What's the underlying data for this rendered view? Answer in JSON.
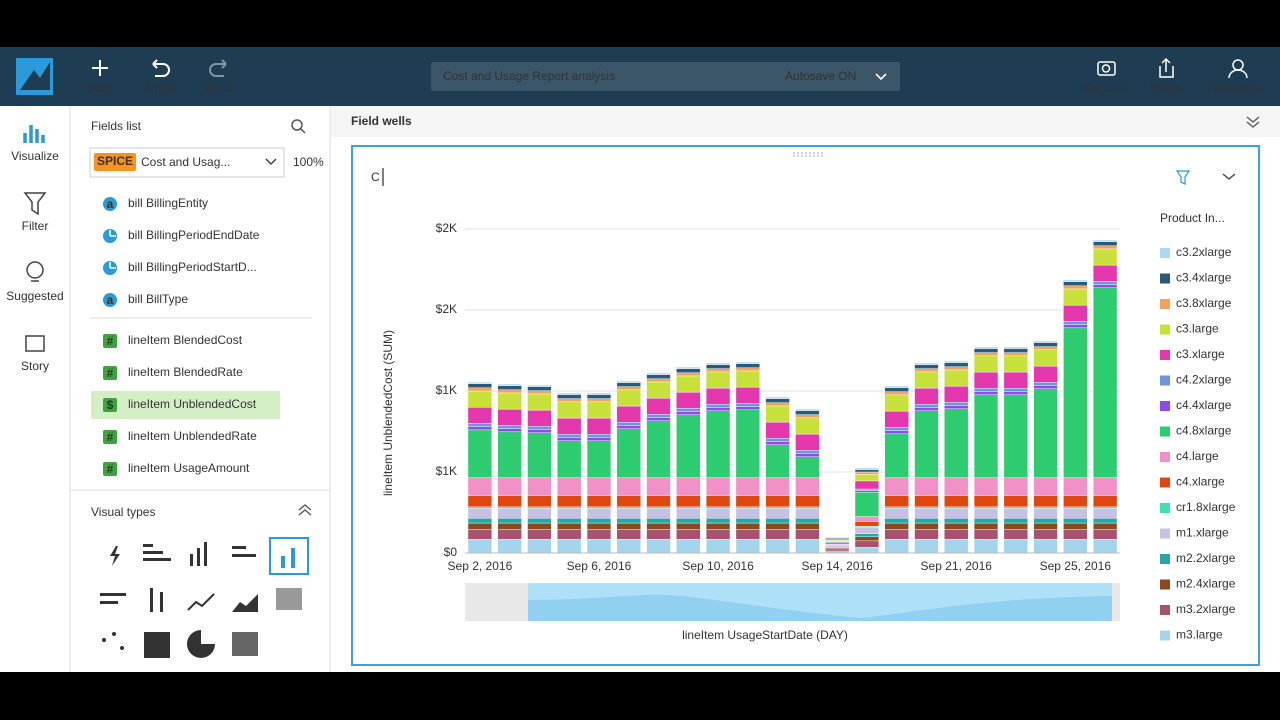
{
  "header": {
    "buttons": [
      "Add",
      "Undo",
      "Redo"
    ],
    "analysis_title": "Cost and Usage Report analysis",
    "autosave": "Autosave ON",
    "right_buttons": [
      "Capture",
      "Share",
      "jhnjos@a..."
    ]
  },
  "rail": [
    "Visualize",
    "Filter",
    "Suggested",
    "Story"
  ],
  "fields": {
    "title": "Fields list",
    "spice": "SPICE",
    "dataset": "Cost and Usag...",
    "percent": "100%",
    "items": [
      {
        "icon": "a",
        "label": "bill BillingEntity"
      },
      {
        "label": "bill BillingPeriodEndDate"
      },
      {
        "label": "bill BillingPeriodStartD..."
      },
      {
        "icon": "a",
        "label": "bill BillType"
      },
      {
        "icon": "#",
        "label": "lineItem BlendedCost"
      },
      {
        "icon": "#",
        "label": "lineItem BlendedRate"
      },
      {
        "icon": "$",
        "label": "lineItem UnblendedCost"
      },
      {
        "icon": "#",
        "label": "lineItem UnblendedRate"
      },
      {
        "icon": "#",
        "label": "lineItem UsageAmount"
      }
    ]
  },
  "visual_types_title": "Visual types",
  "field_wells": "Field wells",
  "visual": {
    "title_input": "C",
    "chart_data": {
      "type": "bar",
      "stacked": true,
      "x_label": "lineItem UsageStartDate (DAY)",
      "y_label": "lineItem UnblendedCost (SUM)",
      "legend_title": "Product In...",
      "categories": [
        "Sep 2, 2016",
        null,
        null,
        null,
        "Sep 6, 2016",
        null,
        null,
        null,
        "Sep 10, 2016",
        null,
        null,
        null,
        "Sep 14, 2016",
        null,
        null,
        null,
        "Sep 21, 2016",
        null,
        null,
        null,
        "Sep 25, 2016",
        null
      ],
      "ylim": [
        0,
        2000
      ],
      "yticks": [
        {
          "value": 0,
          "label": "$0"
        },
        {
          "value": 500,
          "label": "$1K"
        },
        {
          "value": 1000,
          "label": "$1K"
        },
        {
          "value": 1500,
          "label": "$2K"
        },
        {
          "value": 2000,
          "label": "$2K"
        }
      ],
      "grid": true,
      "series": [
        {
          "name": "c3.2xlarge",
          "color": "#a9d9f2",
          "values": [
            10,
            10,
            10,
            10,
            10,
            10,
            10,
            10,
            10,
            10,
            10,
            10,
            5,
            10,
            10,
            10,
            10,
            10,
            10,
            10,
            10,
            10
          ]
        },
        {
          "name": "c3.4xlarge",
          "color": "#2a5a78",
          "values": [
            25,
            25,
            25,
            25,
            25,
            25,
            25,
            25,
            25,
            25,
            25,
            25,
            5,
            15,
            25,
            25,
            25,
            25,
            25,
            25,
            25,
            25
          ]
        },
        {
          "name": "c3.8xlarge",
          "color": "#f2a45c",
          "values": [
            20,
            20,
            20,
            20,
            20,
            20,
            20,
            20,
            20,
            20,
            20,
            20,
            10,
            15,
            20,
            20,
            20,
            20,
            20,
            20,
            20,
            20
          ]
        },
        {
          "name": "c3.large",
          "color": "#c7e03a",
          "values": [
            100,
            100,
            100,
            100,
            100,
            100,
            100,
            100,
            100,
            100,
            100,
            100,
            5,
            40,
            100,
            100,
            100,
            100,
            100,
            100,
            100,
            100
          ]
        },
        {
          "name": "c3.xlarge",
          "color": "#e437ad",
          "values": [
            100,
            100,
            100,
            100,
            100,
            100,
            100,
            100,
            100,
            100,
            100,
            100,
            5,
            50,
            100,
            100,
            100,
            100,
            100,
            100,
            100,
            100
          ]
        },
        {
          "name": "c4.2xlarge",
          "color": "#6e93df",
          "values": [
            20,
            20,
            20,
            20,
            20,
            20,
            20,
            20,
            20,
            20,
            20,
            20,
            5,
            10,
            20,
            20,
            20,
            20,
            20,
            20,
            20,
            20
          ]
        },
        {
          "name": "c4.4xlarge",
          "color": "#8b4de8",
          "values": [
            20,
            20,
            20,
            20,
            20,
            20,
            20,
            20,
            20,
            20,
            20,
            20,
            0,
            10,
            20,
            20,
            20,
            20,
            20,
            20,
            20,
            20
          ]
        },
        {
          "name": "c4.8xlarge",
          "color": "#2ecc71",
          "values": [
            295,
            283,
            277,
            228,
            228,
            302,
            351,
            388,
            413,
            419,
            203,
            129,
            10,
            150,
            271,
            413,
            425,
            512,
            512,
            549,
            925,
            1172
          ]
        },
        {
          "name": "c4.large",
          "color": "#f291c8",
          "values": [
            110,
            110,
            110,
            110,
            110,
            110,
            110,
            110,
            110,
            110,
            110,
            110,
            5,
            30,
            110,
            110,
            110,
            110,
            110,
            110,
            110,
            110
          ]
        },
        {
          "name": "c4.xlarge",
          "color": "#e0470f",
          "values": [
            70,
            70,
            70,
            70,
            70,
            70,
            70,
            70,
            70,
            70,
            70,
            70,
            5,
            30,
            70,
            70,
            70,
            70,
            70,
            70,
            70,
            70
          ]
        },
        {
          "name": "cr1.8xlarge",
          "color": "#3fe0b2",
          "values": [
            10,
            10,
            10,
            10,
            10,
            10,
            10,
            10,
            10,
            10,
            10,
            10,
            0,
            5,
            10,
            10,
            10,
            10,
            10,
            10,
            10,
            10
          ]
        },
        {
          "name": "m1.xlarge",
          "color": "#c6c1e2",
          "values": [
            60,
            60,
            60,
            60,
            60,
            60,
            60,
            60,
            60,
            60,
            60,
            60,
            10,
            40,
            60,
            60,
            60,
            60,
            60,
            60,
            60,
            60
          ]
        },
        {
          "name": "m2.2xlarge",
          "color": "#27a6a8",
          "values": [
            30,
            30,
            30,
            30,
            30,
            30,
            30,
            30,
            30,
            30,
            30,
            30,
            5,
            20,
            30,
            30,
            30,
            30,
            30,
            30,
            30,
            30
          ]
        },
        {
          "name": "m2.4xlarge",
          "color": "#8a4a1e",
          "values": [
            40,
            40,
            40,
            40,
            40,
            40,
            40,
            40,
            40,
            40,
            40,
            40,
            10,
            25,
            40,
            40,
            40,
            40,
            40,
            40,
            40,
            40
          ]
        },
        {
          "name": "m3.2xlarge",
          "color": "#a8526f",
          "values": [
            60,
            60,
            60,
            60,
            60,
            60,
            60,
            60,
            60,
            60,
            60,
            60,
            10,
            40,
            60,
            60,
            60,
            60,
            60,
            60,
            60,
            60
          ]
        },
        {
          "name": "m3.large",
          "color": "#a3d4ec",
          "values": [
            85,
            85,
            85,
            85,
            85,
            85,
            85,
            85,
            85,
            85,
            85,
            85,
            9,
            35,
            85,
            85,
            85,
            85,
            85,
            85,
            85,
            85
          ]
        }
      ]
    }
  }
}
